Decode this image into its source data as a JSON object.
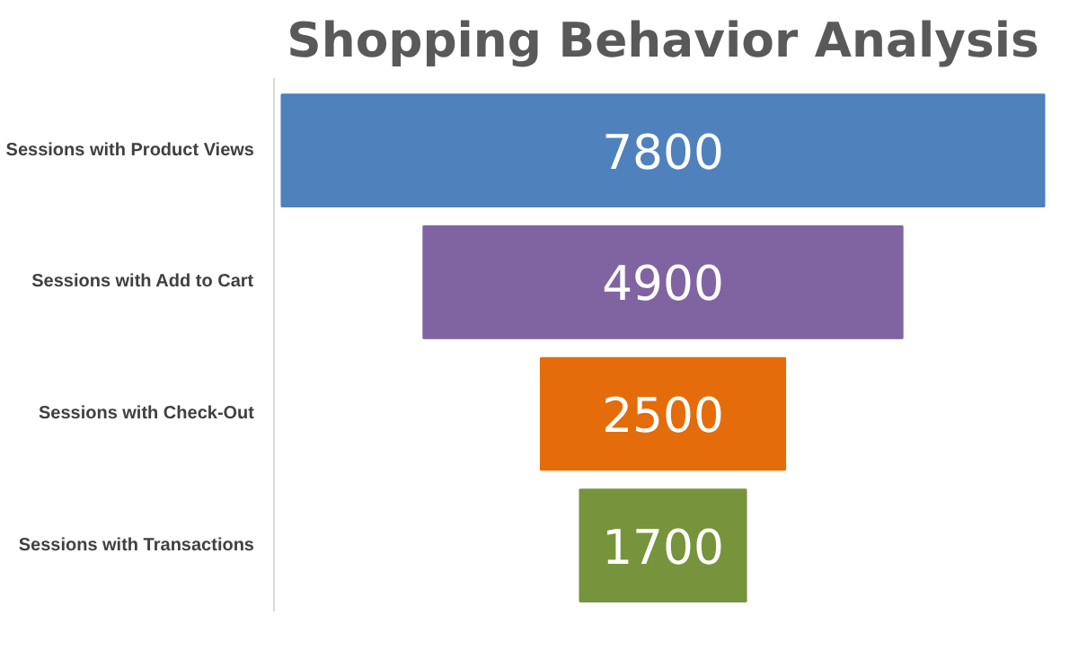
{
  "chart_data": {
    "type": "other",
    "title": "Shopping Behavior Analysis",
    "categories": [
      "Sessions with Product Views",
      "Sessions with Add to Cart",
      "Sessions with Check-Out",
      "Sessions with Transactions"
    ],
    "values": [
      7800,
      4900,
      2500,
      1700
    ],
    "colors": [
      "#4f81bd",
      "#8064a2",
      "#e46c0a",
      "#77933c"
    ],
    "data_labels": true
  }
}
